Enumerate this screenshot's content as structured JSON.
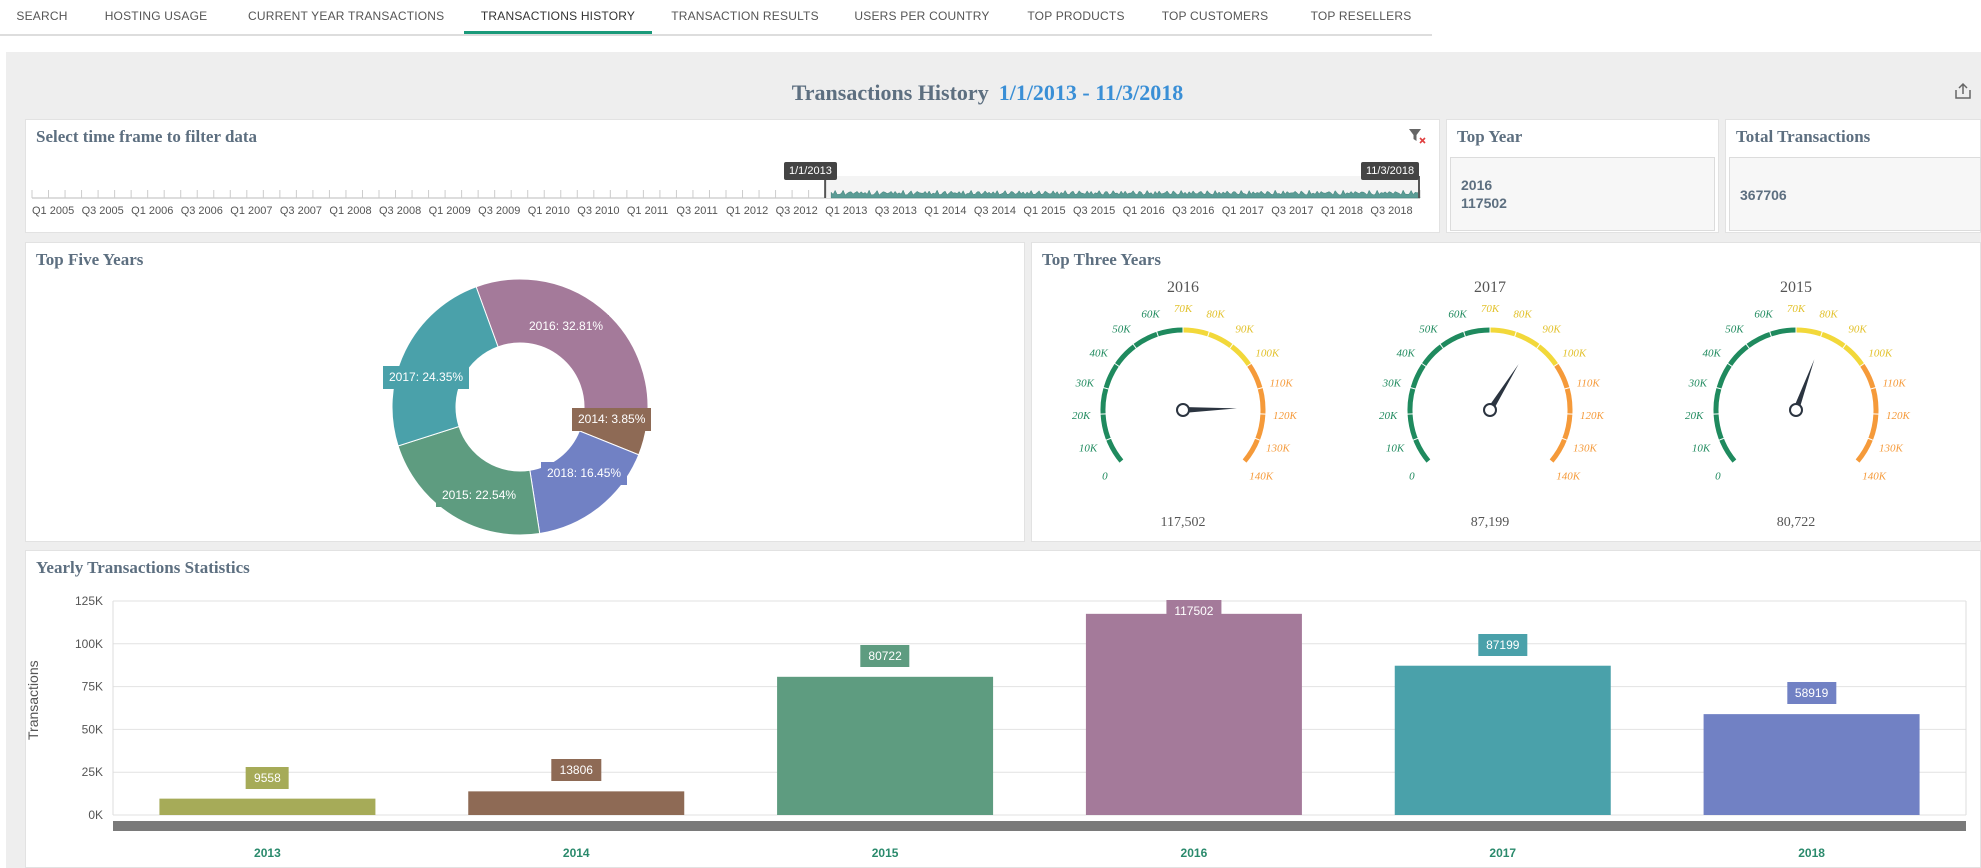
{
  "nav": {
    "tabs": [
      {
        "label": "SEARCH",
        "active": false
      },
      {
        "label": "HOSTING USAGE",
        "active": false
      },
      {
        "label": "CURRENT YEAR TRANSACTIONS",
        "active": false
      },
      {
        "label": "TRANSACTIONS HISTORY",
        "active": true
      },
      {
        "label": "TRANSACTION RESULTS",
        "active": false
      },
      {
        "label": "USERS PER COUNTRY",
        "active": false
      },
      {
        "label": "TOP PRODUCTS",
        "active": false
      },
      {
        "label": "TOP CUSTOMERS",
        "active": false
      },
      {
        "label": "TOP RESELLERS",
        "active": false
      }
    ]
  },
  "header": {
    "title": "Transactions History",
    "date_range": "1/1/2013 - 11/3/2018",
    "export_icon": "export-icon"
  },
  "timeframe": {
    "title": "Select time frame to filter data",
    "filter_icon": "clear-filter-icon",
    "start_label": "1/1/2013",
    "end_label": "11/3/2018",
    "axis_labels": [
      "Q1 2005",
      "Q3 2005",
      "Q1 2006",
      "Q3 2006",
      "Q1 2007",
      "Q3 2007",
      "Q1 2008",
      "Q3 2008",
      "Q1 2009",
      "Q3 2009",
      "Q1 2010",
      "Q3 2010",
      "Q1 2011",
      "Q3 2011",
      "Q1 2012",
      "Q3 2012",
      "Q1 2013",
      "Q3 2013",
      "Q1 2014",
      "Q3 2014",
      "Q1 2015",
      "Q3 2015",
      "Q1 2016",
      "Q3 2016",
      "Q1 2017",
      "Q3 2017",
      "Q1 2018",
      "Q3 2018"
    ]
  },
  "kpis": {
    "top_year": {
      "title": "Top Year",
      "year": "2016",
      "value": "117502"
    },
    "total": {
      "title": "Total Transactions",
      "value": "367706"
    }
  },
  "donut": {
    "title": "Top Five Years",
    "slices": [
      {
        "label": "2016: 32.81%",
        "value": 32.81,
        "color": "#a47a9a"
      },
      {
        "label": "2014: 3.85%",
        "value": 3.85,
        "color": "#8e6a55"
      },
      {
        "label": "2018: 16.45%",
        "value": 16.45,
        "color": "#7181c4"
      },
      {
        "label": "2015: 22.54%",
        "value": 22.54,
        "color": "#5e9c80"
      },
      {
        "label": "2017: 24.35%",
        "value": 24.35,
        "color": "#4aa1aa"
      }
    ]
  },
  "gauges": {
    "title": "Top Three Years",
    "min": 0,
    "max": 140000,
    "tick_labels": [
      "0",
      "10K",
      "20K",
      "30K",
      "40K",
      "50K",
      "60K",
      "70K",
      "80K",
      "90K",
      "100K",
      "110K",
      "120K",
      "130K",
      "140K"
    ],
    "items": [
      {
        "year": "2016",
        "value": 117502,
        "value_label": "117,502"
      },
      {
        "year": "2017",
        "value": 87199,
        "value_label": "87,199"
      },
      {
        "year": "2015",
        "value": 80722,
        "value_label": "80,722"
      }
    ],
    "colors": {
      "low": "#1f8a5e",
      "mid": "#f2d83a",
      "high": "#f59a3a"
    }
  },
  "chart_data": {
    "type": "bar",
    "title": "Yearly Transactions Statistics",
    "categories": [
      "2013",
      "2014",
      "2015",
      "2016",
      "2017",
      "2018"
    ],
    "values": [
      9558,
      13806,
      80722,
      117502,
      87199,
      58919
    ],
    "colors": [
      "#a6ab58",
      "#8e6a55",
      "#5e9c80",
      "#a47a9a",
      "#4aa1aa",
      "#7181c4"
    ],
    "ylabel": "Transactions",
    "ylim": [
      0,
      125000
    ],
    "yticks": [
      "0K",
      "25K",
      "50K",
      "75K",
      "100K",
      "125K"
    ],
    "grid": true
  }
}
